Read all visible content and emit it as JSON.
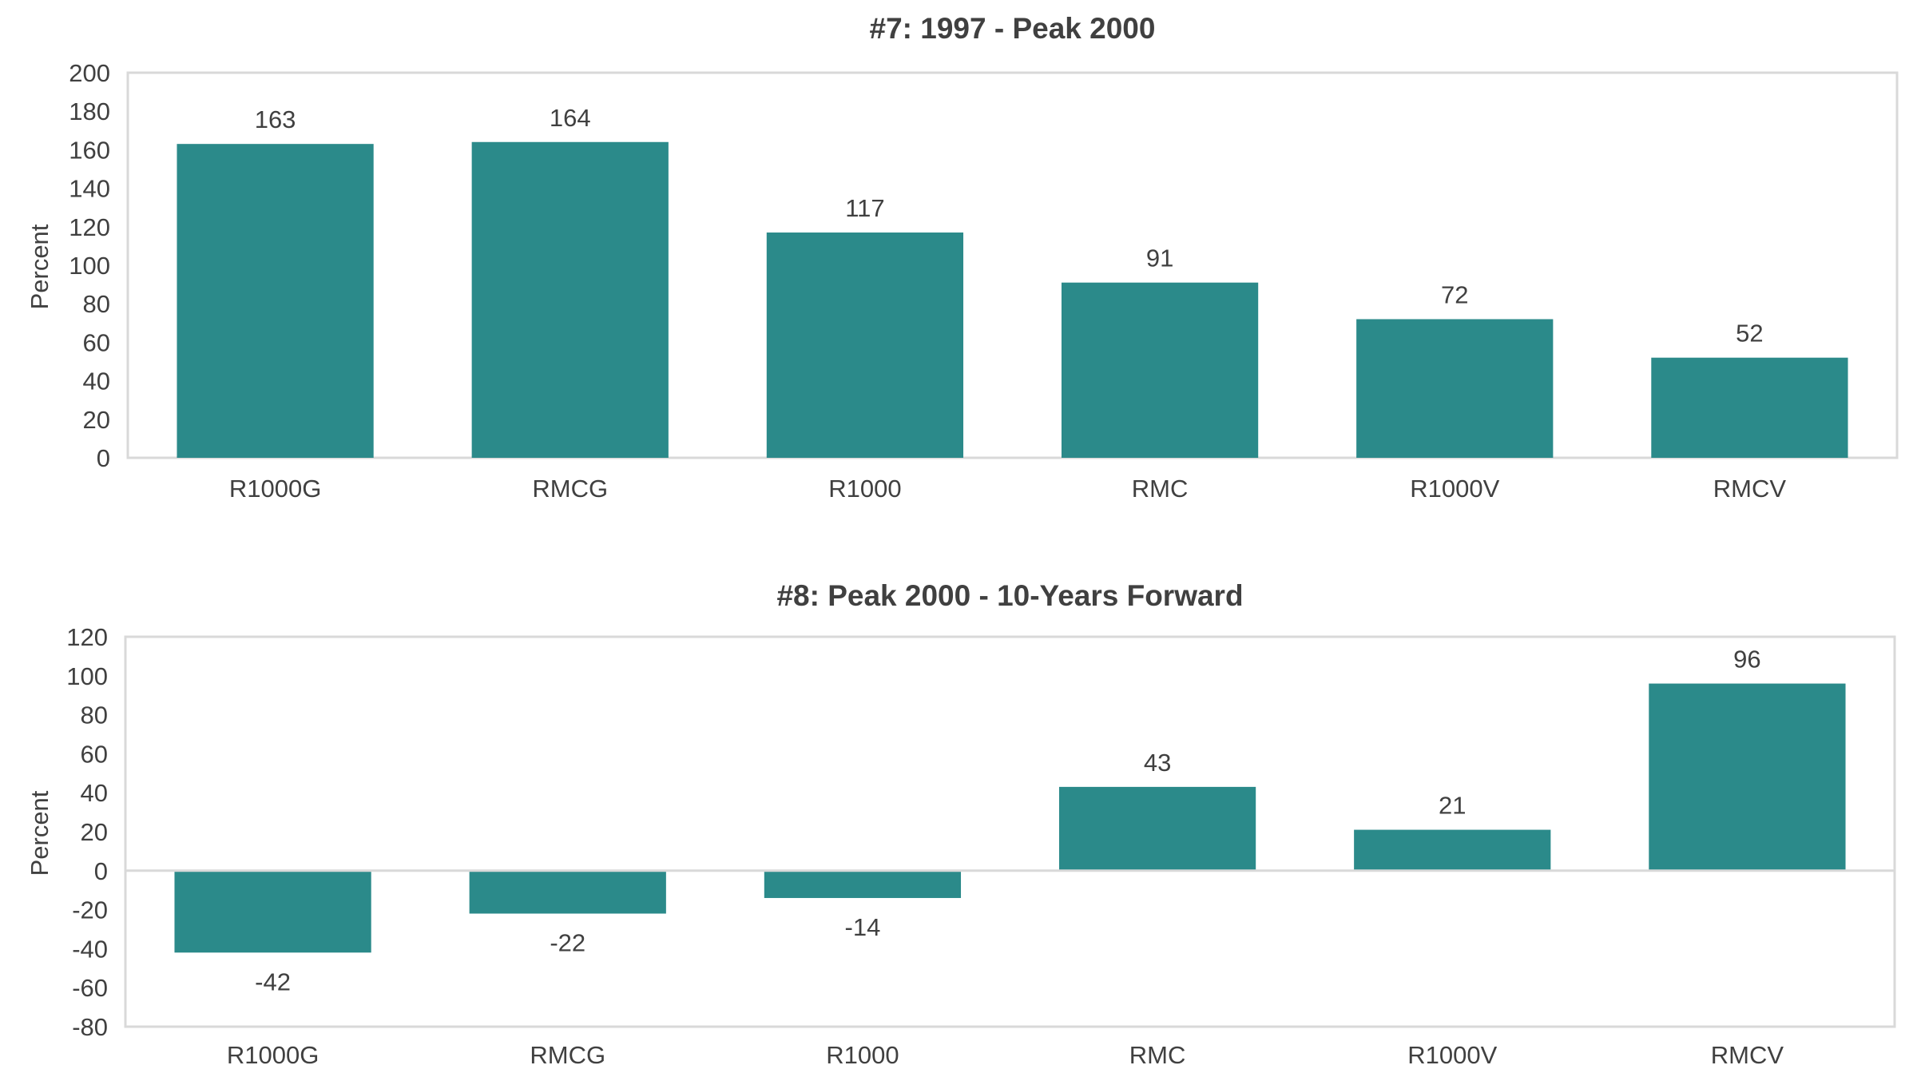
{
  "chart_data": [
    {
      "type": "bar",
      "title": "#7: 1997 - Peak 2000",
      "ylabel": "Percent",
      "xlabel": "",
      "categories": [
        "R1000G",
        "RMCG",
        "R1000",
        "RMC",
        "R1000V",
        "RMCV"
      ],
      "values": [
        163,
        164,
        117,
        91,
        72,
        52
      ],
      "ylim": [
        0,
        200
      ],
      "yticks": [
        0,
        20,
        40,
        60,
        80,
        100,
        120,
        140,
        160,
        180,
        200
      ],
      "bar_color": "#2b8a8a",
      "grid": false,
      "legend": "none"
    },
    {
      "type": "bar",
      "title": "#8: Peak 2000 - 10-Years Forward",
      "ylabel": "Percent",
      "xlabel": "",
      "categories": [
        "R1000G",
        "RMCG",
        "R1000",
        "RMC",
        "R1000V",
        "RMCV"
      ],
      "values": [
        -42,
        -22,
        -14,
        43,
        21,
        96
      ],
      "ylim": [
        -80,
        120
      ],
      "yticks": [
        -80,
        -60,
        -40,
        -20,
        0,
        20,
        40,
        60,
        80,
        100,
        120
      ],
      "bar_color": "#2b8a8a",
      "grid": false,
      "legend": "none"
    }
  ]
}
